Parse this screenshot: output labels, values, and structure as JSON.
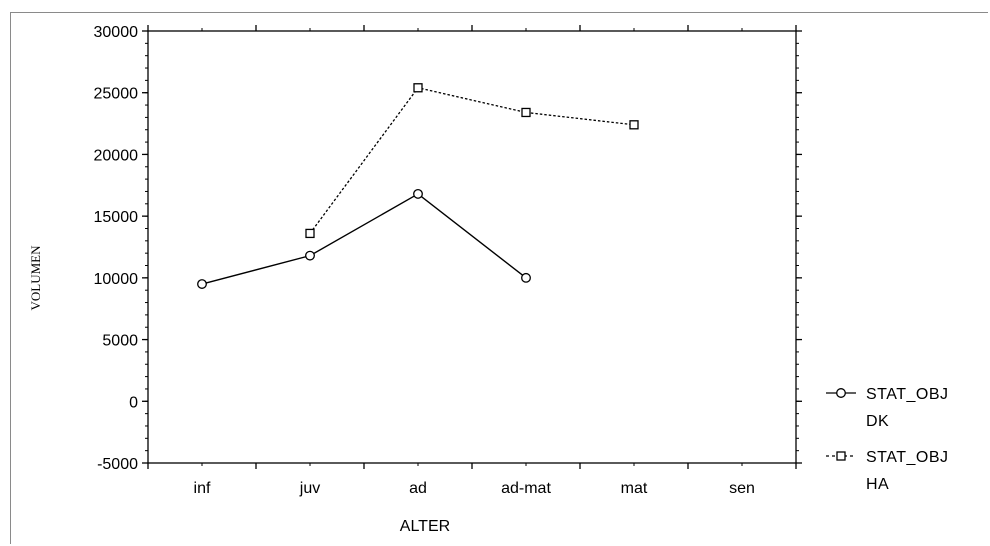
{
  "chart_data": {
    "type": "line",
    "title": "",
    "xlabel": "ALTER",
    "ylabel": "VOLUMEN",
    "categories": [
      "inf",
      "juv",
      "ad",
      "ad-mat",
      "mat",
      "sen"
    ],
    "ylim": [
      -5000,
      30000
    ],
    "yticks": [
      -5000,
      0,
      5000,
      10000,
      15000,
      20000,
      25000,
      30000
    ],
    "grid": false,
    "legend_position": "right",
    "series": [
      {
        "name": "STAT_OBJ DK",
        "legend_lines": [
          "STAT_OBJ",
          "DK"
        ],
        "marker": "circle",
        "line_style": "solid",
        "color": "#000000",
        "values": [
          9500,
          11800,
          16800,
          10000,
          null,
          null
        ]
      },
      {
        "name": "STAT_OBJ HA",
        "legend_lines": [
          "STAT_OBJ",
          "HA"
        ],
        "marker": "square",
        "line_style": "dotted",
        "color": "#000000",
        "values": [
          null,
          13600,
          25400,
          23400,
          22400,
          null
        ]
      }
    ]
  }
}
